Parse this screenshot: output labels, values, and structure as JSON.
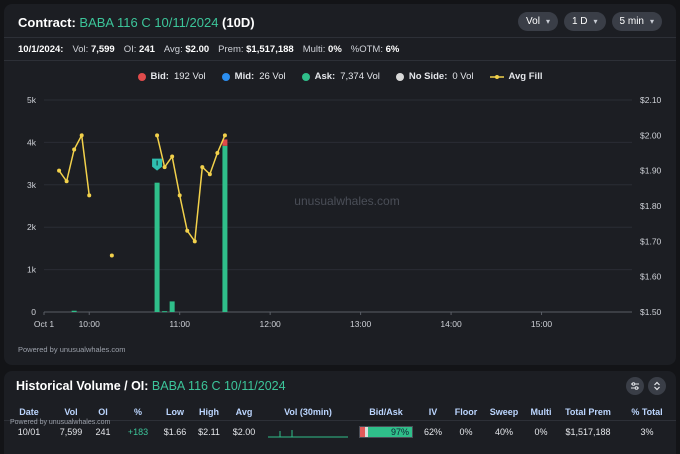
{
  "header": {
    "label": "Contract:",
    "contract": "BABA 116 C 10/11/2024",
    "dte": "(10D)",
    "controls": [
      {
        "label": "Vol"
      },
      {
        "label": "1 D"
      },
      {
        "label": "5 min"
      }
    ]
  },
  "stats": {
    "date": "10/1/2024:",
    "vol_label": "Vol:",
    "vol": "7,599",
    "oi_label": "OI:",
    "oi": "241",
    "avg_label": "Avg:",
    "avg": "$2.00",
    "prem_label": "Prem:",
    "prem": "$1,517,188",
    "multi_label": "Multi:",
    "multi": "0%",
    "otm_label": "%OTM:",
    "otm": "6%"
  },
  "legend": [
    {
      "label": "Bid:",
      "value": "192 Vol",
      "color": "#e04b4b"
    },
    {
      "label": "Mid:",
      "value": "26 Vol",
      "color": "#2b8ef0"
    },
    {
      "label": "Ask:",
      "value": "7,374 Vol",
      "color": "#2fbf8a"
    },
    {
      "label": "No Side:",
      "value": "0 Vol",
      "color": "#d8d8d8"
    },
    {
      "label": "Avg Fill",
      "value": "",
      "color": "#f2d14b"
    }
  ],
  "watermark": "unusualwhales.com",
  "powered_by": "Powered by unusualwhales.com",
  "chart_data": {
    "type": "bar",
    "x_tick_labels": [
      "Oct 1",
      "10:00",
      "11:00",
      "12:00",
      "13:00",
      "14:00",
      "15:00"
    ],
    "y_left_ticks": [
      "0",
      "1k",
      "2k",
      "3k",
      "4k",
      "5k"
    ],
    "y_right_ticks": [
      "$1.50",
      "$1.60",
      "$1.70",
      "$1.80",
      "$1.90",
      "$2.00",
      "$2.10"
    ],
    "ylim_left": [
      0,
      5000
    ],
    "ylim_right": [
      1.5,
      2.1
    ],
    "bars": [
      {
        "time": "09:30",
        "ask": 0,
        "bid": 0
      },
      {
        "time": "09:35",
        "ask": 0,
        "bid": 0
      },
      {
        "time": "09:40",
        "ask": 0,
        "bid": 0
      },
      {
        "time": "09:50",
        "ask": 30,
        "bid": 0
      },
      {
        "time": "10:45",
        "ask": 3050,
        "bid": 0
      },
      {
        "time": "10:50",
        "ask": 20,
        "bid": 0
      },
      {
        "time": "10:55",
        "ask": 250,
        "bid": 0
      },
      {
        "time": "11:30",
        "ask": 3920,
        "bid": 150
      }
    ],
    "avg_fill_segments": [
      [
        {
          "time": "09:40",
          "price": 1.9
        },
        {
          "time": "09:45",
          "price": 1.87
        },
        {
          "time": "09:50",
          "price": 1.96
        },
        {
          "time": "09:55",
          "price": 2.0
        },
        {
          "time": "10:00",
          "price": 1.83
        }
      ],
      [
        {
          "time": "10:15",
          "price": 1.66
        }
      ],
      [
        {
          "time": "10:45",
          "price": 2.0
        },
        {
          "time": "10:50",
          "price": 1.91
        },
        {
          "time": "10:55",
          "price": 1.94
        },
        {
          "time": "11:00",
          "price": 1.83
        },
        {
          "time": "11:05",
          "price": 1.73
        },
        {
          "time": "11:10",
          "price": 1.7
        },
        {
          "time": "11:15",
          "price": 1.91
        },
        {
          "time": "11:20",
          "price": 1.89
        },
        {
          "time": "11:25",
          "price": 1.95
        },
        {
          "time": "11:30",
          "price": 2.0
        }
      ]
    ],
    "marker": {
      "time": "10:45",
      "label": "I"
    }
  },
  "historical": {
    "title": "Historical Volume / OI:",
    "contract": "BABA 116 C 10/11/2024",
    "powered_by": "Powered by unusualwhales.com",
    "columns": [
      "Date",
      "Vol",
      "OI",
      "%",
      "Low",
      "High",
      "Avg",
      "Vol (30min)",
      "Bid/Ask",
      "IV",
      "Floor",
      "Sweep",
      "Multi",
      "Total Prem",
      "% Total"
    ],
    "row": {
      "date": "10/01",
      "vol": "7,599",
      "oi": "241",
      "pct": "+183",
      "low": "$1.66",
      "high": "$2.11",
      "avg": "$2.00",
      "bid_ask": "97%",
      "iv": "62%",
      "floor": "0%",
      "sweep": "40%",
      "multi": "0%",
      "total_prem": "$1,517,188",
      "pct_total": "3%"
    }
  }
}
